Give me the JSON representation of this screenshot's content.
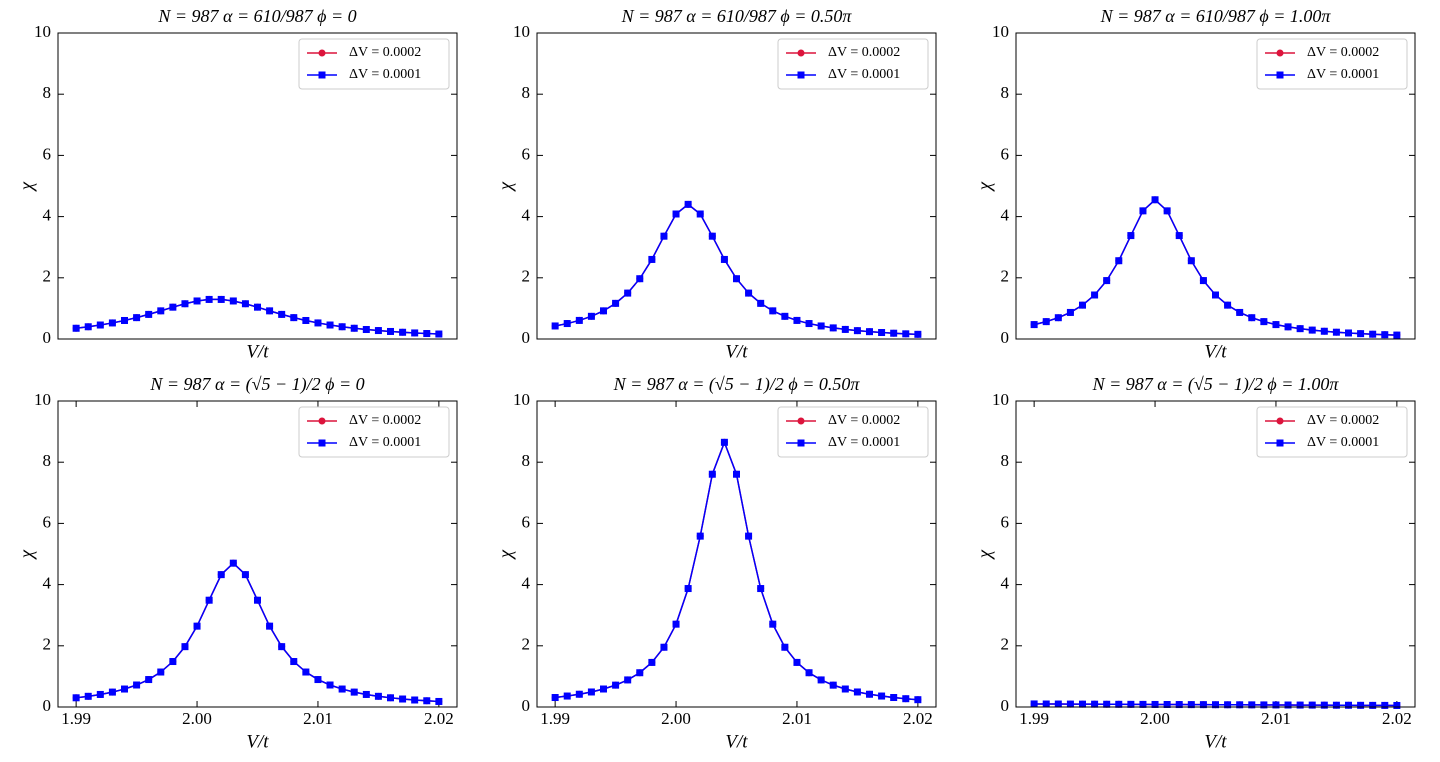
{
  "chart_data": [
    {
      "type": "line",
      "title": "N = 987  α = 610/987  ϕ = 0",
      "xlabel": "V/t",
      "ylabel": "χ",
      "x": [
        1.99,
        1.991,
        1.992,
        1.993,
        1.994,
        1.995,
        1.996,
        1.997,
        1.998,
        1.999,
        2.0,
        2.001,
        2.002,
        2.003,
        2.004,
        2.005,
        2.006,
        2.007,
        2.008,
        2.009,
        2.01,
        2.011,
        2.012,
        2.013,
        2.014,
        2.015,
        2.016,
        2.017,
        2.018,
        2.019,
        2.02
      ],
      "xlim": [
        1.9885,
        2.0215
      ],
      "ylim": [
        0,
        10
      ],
      "yticks": [
        0,
        2,
        4,
        6,
        8,
        10
      ],
      "legend": "upper right",
      "series": [
        {
          "name": "ΔV = 0.0002",
          "color": "#dc143c",
          "marker": "circle",
          "values": [
            0.351,
            0.4,
            0.457,
            0.525,
            0.605,
            0.698,
            0.804,
            0.92,
            1.04,
            1.152,
            1.243,
            1.293,
            1.293,
            1.243,
            1.152,
            1.04,
            0.92,
            0.804,
            0.698,
            0.605,
            0.525,
            0.457,
            0.4,
            0.351,
            0.31,
            0.276,
            0.246,
            0.22,
            0.198,
            0.179,
            0.163
          ]
        },
        {
          "name": "ΔV = 0.0001",
          "color": "#0000ff",
          "marker": "square",
          "values": [
            0.351,
            0.4,
            0.457,
            0.525,
            0.605,
            0.698,
            0.804,
            0.92,
            1.04,
            1.152,
            1.243,
            1.293,
            1.293,
            1.243,
            1.152,
            1.04,
            0.92,
            0.804,
            0.698,
            0.605,
            0.525,
            0.457,
            0.4,
            0.351,
            0.31,
            0.276,
            0.246,
            0.22,
            0.198,
            0.179,
            0.163
          ]
        }
      ]
    },
    {
      "type": "line",
      "title": "N = 987  α = 610/987  ϕ = 0.50π",
      "xlabel": "V/t",
      "ylabel": "χ",
      "x": [
        1.99,
        1.991,
        1.992,
        1.993,
        1.994,
        1.995,
        1.996,
        1.997,
        1.998,
        1.999,
        2.0,
        2.001,
        2.002,
        2.003,
        2.004,
        2.005,
        2.006,
        2.007,
        2.008,
        2.009,
        2.01,
        2.011,
        2.012,
        2.013,
        2.014,
        2.015,
        2.016,
        2.017,
        2.018,
        2.019,
        2.02
      ],
      "xlim": [
        1.9885,
        2.0215
      ],
      "ylim": [
        0,
        10
      ],
      "yticks": [
        0,
        2,
        4,
        6,
        8,
        10
      ],
      "legend": "upper right",
      "series": [
        {
          "name": "ΔV = 0.0002",
          "color": "#dc143c",
          "marker": "circle",
          "values": [
            0.426,
            0.505,
            0.607,
            0.741,
            0.92,
            1.165,
            1.5,
            1.97,
            2.6,
            3.36,
            4.085,
            4.4,
            4.085,
            3.36,
            2.6,
            1.97,
            1.5,
            1.165,
            0.92,
            0.741,
            0.607,
            0.505,
            0.426,
            0.363,
            0.313,
            0.273,
            0.24,
            0.212,
            0.189,
            0.169,
            0.153
          ]
        },
        {
          "name": "ΔV = 0.0001",
          "color": "#0000ff",
          "marker": "square",
          "values": [
            0.426,
            0.505,
            0.607,
            0.741,
            0.92,
            1.165,
            1.5,
            1.97,
            2.6,
            3.36,
            4.085,
            4.4,
            4.085,
            3.36,
            2.6,
            1.97,
            1.5,
            1.165,
            0.92,
            0.741,
            0.607,
            0.505,
            0.426,
            0.363,
            0.313,
            0.273,
            0.24,
            0.212,
            0.189,
            0.169,
            0.153
          ]
        }
      ]
    },
    {
      "type": "line",
      "title": "N = 987  α = 610/987  ϕ = 1.00π",
      "xlabel": "V/t",
      "ylabel": "χ",
      "x": [
        1.99,
        1.991,
        1.992,
        1.993,
        1.994,
        1.995,
        1.996,
        1.997,
        1.998,
        1.999,
        2.0,
        2.001,
        2.002,
        2.003,
        2.004,
        2.005,
        2.006,
        2.007,
        2.008,
        2.009,
        2.01,
        2.011,
        2.012,
        2.013,
        2.014,
        2.015,
        2.016,
        2.017,
        2.018,
        2.019,
        2.02
      ],
      "xlim": [
        1.9885,
        2.0215
      ],
      "ylim": [
        0,
        10
      ],
      "yticks": [
        0,
        2,
        4,
        6,
        8,
        10
      ],
      "legend": "upper right",
      "series": [
        {
          "name": "ΔV = 0.0002",
          "color": "#dc143c",
          "marker": "circle",
          "values": [
            0.471,
            0.568,
            0.696,
            0.868,
            1.106,
            1.438,
            1.909,
            2.558,
            3.38,
            4.188,
            4.55,
            4.188,
            3.38,
            2.558,
            1.909,
            1.438,
            1.106,
            0.868,
            0.696,
            0.568,
            0.471,
            0.397,
            0.338,
            0.291,
            0.253,
            0.222,
            0.197,
            0.175,
            0.157,
            0.141,
            0.128
          ]
        },
        {
          "name": "ΔV = 0.0001",
          "color": "#0000ff",
          "marker": "square",
          "values": [
            0.471,
            0.568,
            0.696,
            0.868,
            1.106,
            1.438,
            1.909,
            2.558,
            3.38,
            4.188,
            4.55,
            4.188,
            3.38,
            2.558,
            1.909,
            1.438,
            1.106,
            0.868,
            0.696,
            0.568,
            0.471,
            0.397,
            0.338,
            0.291,
            0.253,
            0.222,
            0.197,
            0.175,
            0.157,
            0.141,
            0.128
          ]
        }
      ]
    },
    {
      "type": "line",
      "title": "N = 987  α = (√5 − 1)/2  ϕ = 0",
      "xlabel": "V/t",
      "ylabel": "χ",
      "x": [
        1.99,
        1.991,
        1.992,
        1.993,
        1.994,
        1.995,
        1.996,
        1.997,
        1.998,
        1.999,
        2.0,
        2.001,
        2.002,
        2.003,
        2.004,
        2.005,
        2.006,
        2.007,
        2.008,
        2.009,
        2.01,
        2.011,
        2.012,
        2.013,
        2.014,
        2.015,
        2.016,
        2.017,
        2.018,
        2.019,
        2.02
      ],
      "xlim": [
        1.9885,
        2.0215
      ],
      "xticks": [
        1.99,
        {
          "value": 2,
          "label": "2.00"
        },
        2.01,
        2.02
      ],
      "ylim": [
        0,
        10
      ],
      "yticks": [
        0,
        2,
        4,
        6,
        8,
        10
      ],
      "legend": "upper right",
      "series": [
        {
          "name": "ΔV = 0.0002",
          "color": "#dc143c",
          "marker": "circle",
          "values": [
            0.301,
            0.349,
            0.41,
            0.487,
            0.587,
            0.719,
            0.897,
            1.143,
            1.486,
            1.972,
            2.642,
            3.49,
            4.326,
            4.7,
            4.326,
            3.49,
            2.642,
            1.972,
            1.486,
            1.143,
            0.897,
            0.719,
            0.587,
            0.487,
            0.41,
            0.349,
            0.301,
            0.261,
            0.229,
            0.204,
            0.181
          ]
        },
        {
          "name": "ΔV = 0.0001",
          "color": "#0000ff",
          "marker": "square",
          "values": [
            0.301,
            0.349,
            0.41,
            0.487,
            0.587,
            0.719,
            0.897,
            1.143,
            1.486,
            1.972,
            2.642,
            3.49,
            4.326,
            4.7,
            4.326,
            3.49,
            2.642,
            1.972,
            1.486,
            1.143,
            0.897,
            0.719,
            0.587,
            0.487,
            0.41,
            0.349,
            0.301,
            0.261,
            0.229,
            0.204,
            0.181
          ]
        }
      ]
    },
    {
      "type": "line",
      "title": "N = 987  α = (√5 − 1)/2  ϕ = 0.50π",
      "xlabel": "V/t",
      "ylabel": "χ",
      "x": [
        1.99,
        1.991,
        1.992,
        1.993,
        1.994,
        1.995,
        1.996,
        1.997,
        1.998,
        1.999,
        2.0,
        2.001,
        2.002,
        2.003,
        2.004,
        2.005,
        2.006,
        2.007,
        2.008,
        2.009,
        2.01,
        2.011,
        2.012,
        2.013,
        2.014,
        2.015,
        2.016,
        2.017,
        2.018,
        2.019,
        2.02
      ],
      "xlim": [
        1.9885,
        2.0215
      ],
      "xticks": [
        1.99,
        {
          "value": 2,
          "label": "2.00"
        },
        2.01,
        2.02
      ],
      "ylim": [
        0,
        10
      ],
      "yticks": [
        0,
        2,
        4,
        6,
        8,
        10
      ],
      "legend": "upper right",
      "series": [
        {
          "name": "ΔV = 0.0002",
          "color": "#dc143c",
          "marker": "circle",
          "values": [
            0.31,
            0.358,
            0.417,
            0.491,
            0.588,
            0.714,
            0.885,
            1.12,
            1.457,
            1.953,
            2.707,
            3.871,
            5.584,
            7.607,
            8.65,
            7.607,
            5.584,
            3.871,
            2.707,
            1.953,
            1.457,
            1.12,
            0.885,
            0.714,
            0.588,
            0.491,
            0.417,
            0.358,
            0.31,
            0.271,
            0.239
          ]
        },
        {
          "name": "ΔV = 0.0001",
          "color": "#0000ff",
          "marker": "square",
          "values": [
            0.31,
            0.358,
            0.417,
            0.491,
            0.588,
            0.714,
            0.885,
            1.12,
            1.457,
            1.953,
            2.707,
            3.871,
            5.584,
            7.607,
            8.65,
            7.607,
            5.584,
            3.871,
            2.707,
            1.953,
            1.457,
            1.12,
            0.885,
            0.714,
            0.588,
            0.491,
            0.417,
            0.358,
            0.31,
            0.271,
            0.239
          ]
        }
      ]
    },
    {
      "type": "line",
      "title": "N = 987  α = (√5 − 1)/2  ϕ = 1.00π",
      "xlabel": "V/t",
      "ylabel": "χ",
      "x": [
        1.99,
        1.991,
        1.992,
        1.993,
        1.994,
        1.995,
        1.996,
        1.997,
        1.998,
        1.999,
        2.0,
        2.001,
        2.002,
        2.003,
        2.004,
        2.005,
        2.006,
        2.007,
        2.008,
        2.009,
        2.01,
        2.011,
        2.012,
        2.013,
        2.014,
        2.015,
        2.016,
        2.017,
        2.018,
        2.019,
        2.02
      ],
      "xlim": [
        1.9885,
        2.0215
      ],
      "xticks": [
        1.99,
        {
          "value": 2,
          "label": "2.00"
        },
        2.01,
        2.02
      ],
      "ylim": [
        0,
        10
      ],
      "yticks": [
        0,
        2,
        4,
        6,
        8,
        10
      ],
      "legend": "upper right",
      "series": [
        {
          "name": "ΔV = 0.0002",
          "color": "#dc143c",
          "marker": "circle",
          "values": [
            0.1,
            0.098,
            0.097,
            0.095,
            0.093,
            0.092,
            0.09,
            0.088,
            0.087,
            0.085,
            0.083,
            0.082,
            0.08,
            0.078,
            0.077,
            0.075,
            0.073,
            0.072,
            0.07,
            0.068,
            0.067,
            0.065,
            0.063,
            0.062,
            0.06,
            0.058,
            0.057,
            0.055,
            0.053,
            0.052,
            0.05
          ]
        },
        {
          "name": "ΔV = 0.0001",
          "color": "#0000ff",
          "marker": "square",
          "values": [
            0.1,
            0.098,
            0.097,
            0.095,
            0.093,
            0.092,
            0.09,
            0.088,
            0.087,
            0.085,
            0.083,
            0.082,
            0.08,
            0.078,
            0.077,
            0.075,
            0.073,
            0.072,
            0.07,
            0.068,
            0.067,
            0.065,
            0.063,
            0.062,
            0.06,
            0.058,
            0.057,
            0.055,
            0.053,
            0.052,
            0.05
          ]
        }
      ]
    }
  ]
}
